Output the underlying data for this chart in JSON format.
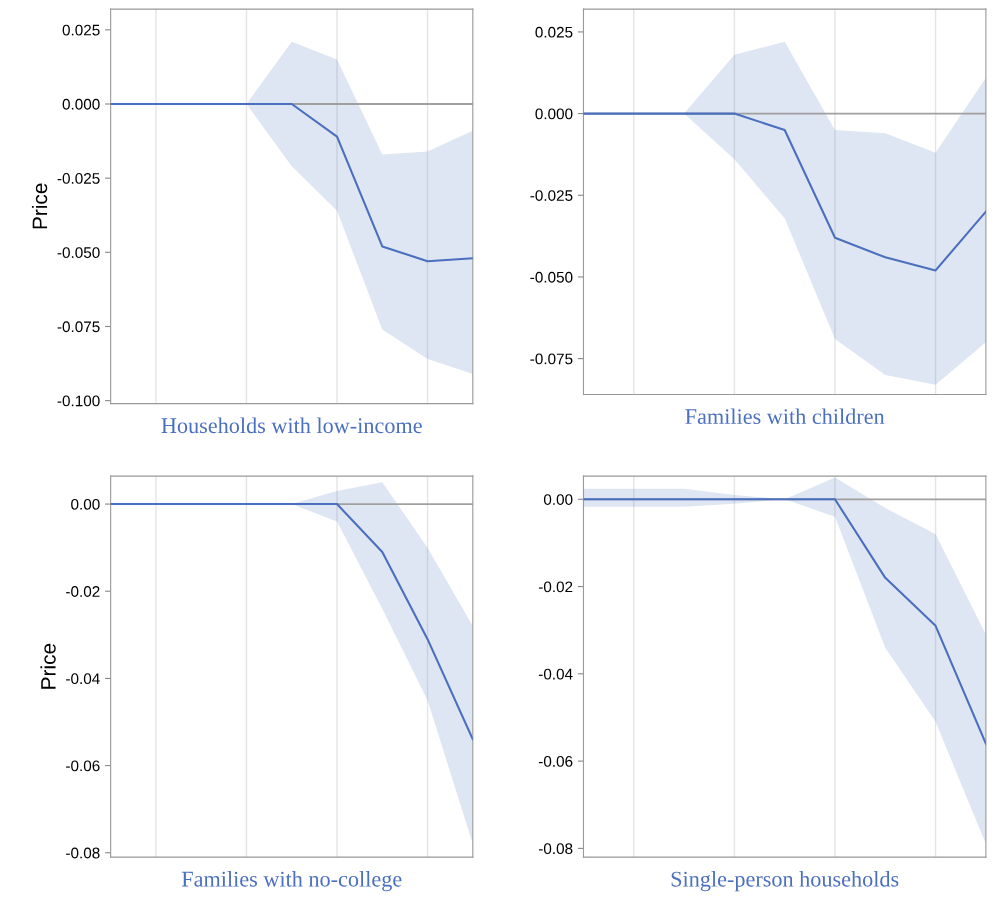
{
  "chart_data": [
    {
      "type": "line",
      "xlabel": "Households with low-income",
      "ylabel": "Price",
      "categories": [
        null,
        null,
        null,
        null,
        null,
        null,
        null,
        null,
        null
      ],
      "grid": "x",
      "ylim": [
        -0.101,
        0.032
      ],
      "yticks": [
        {
          "value": 0.025,
          "label": "0.025"
        },
        {
          "value": 0,
          "label": "0.000"
        },
        {
          "value": -0.025,
          "label": "-0.025"
        },
        {
          "value": -0.05,
          "label": "-0.050"
        },
        {
          "value": -0.075,
          "label": "-0.075"
        },
        {
          "value": -0.1,
          "label": "-0.100"
        }
      ],
      "ref_lines": [
        {
          "axis": "y",
          "value": 0,
          "color": "#a0a0a0"
        }
      ],
      "series": [
        {
          "color": "#4a6fbf",
          "values": [
            0,
            0,
            0,
            0,
            0,
            -0.011,
            -0.048,
            -0.053,
            -0.052
          ],
          "lower": [
            0,
            0,
            0,
            0,
            -0.021,
            -0.036,
            -0.076,
            -0.086,
            -0.091
          ],
          "upper": [
            0,
            0,
            0,
            0,
            0.021,
            0.015,
            -0.017,
            -0.016,
            -0.009
          ]
        }
      ]
    },
    {
      "type": "line",
      "xlabel": "Families with children",
      "categories": [
        null,
        null,
        null,
        null,
        null,
        null,
        null,
        null,
        null
      ],
      "grid": "x",
      "ylim": [
        -0.086,
        0.032
      ],
      "yticks": [
        {
          "value": 0.025,
          "label": "0.025"
        },
        {
          "value": 0,
          "label": "0.000"
        },
        {
          "value": -0.025,
          "label": "-0.025"
        },
        {
          "value": -0.05,
          "label": "-0.050"
        },
        {
          "value": -0.075,
          "label": "-0.075"
        }
      ],
      "ref_lines": [
        {
          "axis": "y",
          "value": 0,
          "color": "#a0a0a0"
        }
      ],
      "series": [
        {
          "color": "#4a6fbf",
          "values": [
            0,
            0,
            0,
            0,
            -0.005,
            -0.038,
            -0.044,
            -0.048,
            -0.03
          ],
          "lower": [
            0,
            0,
            0,
            -0.014,
            -0.032,
            -0.069,
            -0.08,
            -0.083,
            -0.07
          ],
          "upper": [
            0,
            0,
            0,
            0.018,
            0.022,
            -0.005,
            -0.006,
            -0.012,
            0.011
          ]
        }
      ]
    },
    {
      "type": "line",
      "xlabel": "Families with no-college",
      "ylabel": "Price",
      "categories": [
        null,
        null,
        null,
        null,
        null,
        null,
        null,
        null,
        null
      ],
      "grid": "x",
      "ylim": [
        -0.081,
        0.0064
      ],
      "yticks": [
        {
          "value": 0,
          "label": "0.00"
        },
        {
          "value": -0.02,
          "label": "-0.02"
        },
        {
          "value": -0.04,
          "label": "-0.04"
        },
        {
          "value": -0.06,
          "label": "-0.06"
        },
        {
          "value": -0.08,
          "label": "-0.08"
        }
      ],
      "ref_lines": [
        {
          "axis": "y",
          "value": 0,
          "color": "#a0a0a0"
        }
      ],
      "series": [
        {
          "color": "#4a6fbf",
          "values": [
            0,
            0,
            0,
            0,
            0,
            0,
            -0.011,
            -0.031,
            -0.054
          ],
          "lower": [
            0,
            0,
            0,
            0,
            0,
            -0.004,
            -0.024,
            -0.045,
            -0.078
          ],
          "upper": [
            0,
            0,
            0,
            0,
            0,
            0.003,
            0.005,
            -0.01,
            -0.028
          ]
        }
      ]
    },
    {
      "type": "line",
      "xlabel": "Single-person households",
      "categories": [
        null,
        null,
        null,
        null,
        null,
        null,
        null,
        null,
        null
      ],
      "grid": "x",
      "ylim": [
        -0.082,
        0.0053
      ],
      "yticks": [
        {
          "value": 0,
          "label": "0.00"
        },
        {
          "value": -0.02,
          "label": "-0.02"
        },
        {
          "value": -0.04,
          "label": "-0.04"
        },
        {
          "value": -0.06,
          "label": "-0.06"
        },
        {
          "value": -0.08,
          "label": "-0.08"
        }
      ],
      "ref_lines": [
        {
          "axis": "y",
          "value": 0,
          "color": "#a0a0a0"
        }
      ],
      "series": [
        {
          "color": "#4a6fbf",
          "values": [
            0,
            0,
            0,
            0,
            0,
            0,
            -0.018,
            -0.029,
            -0.056
          ],
          "lower": [
            -0.0017,
            -0.0017,
            -0.0017,
            -0.001,
            0,
            -0.004,
            -0.034,
            -0.051,
            -0.079
          ],
          "upper": [
            0.0024,
            0.0024,
            0.0024,
            0.001,
            0,
            0.005,
            -0.002,
            -0.008,
            -0.031
          ]
        }
      ]
    }
  ]
}
